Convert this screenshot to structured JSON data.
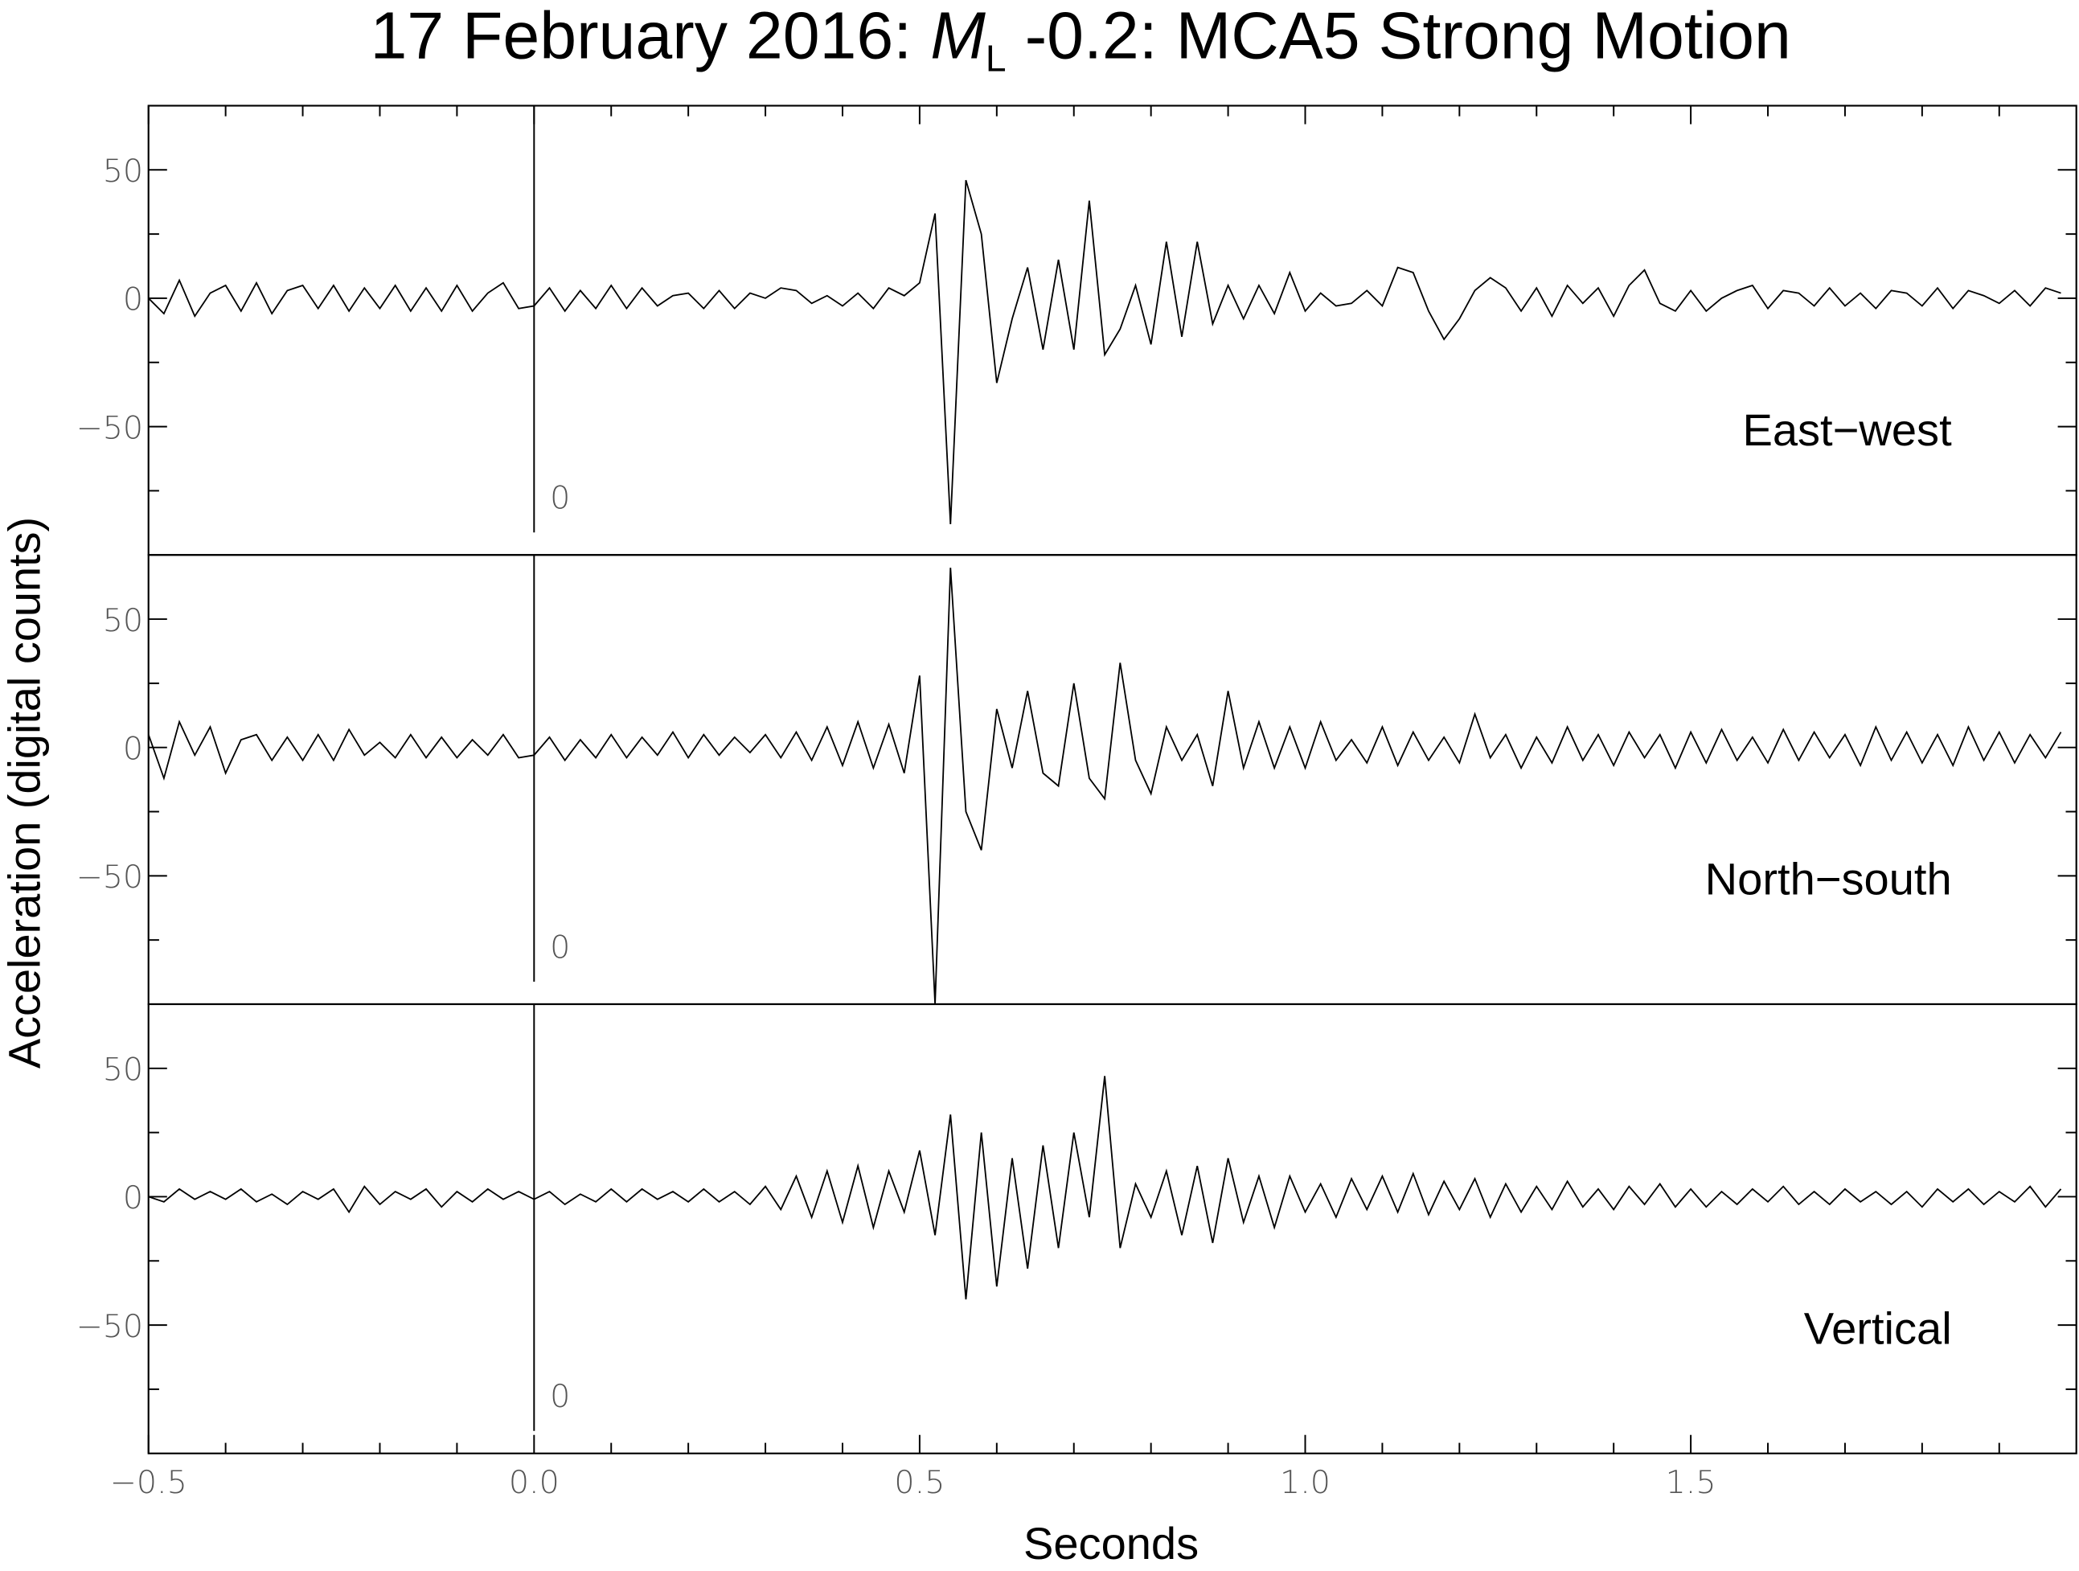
{
  "chart_data": {
    "type": "line",
    "layout": "stacked",
    "title": {
      "date": "17 February 2016:",
      "symbol": "M",
      "subscript": "L",
      "rest": "-0.2: MCA5 Strong Motion"
    },
    "xlabel": "Seconds",
    "ylabel": "Acceleration (digital counts)",
    "xlim": [
      -0.5,
      2.0
    ],
    "xticks": [
      {
        "value": -0.5,
        "label": "−0.5"
      },
      {
        "value": 0,
        "label": "0.0"
      },
      0.5,
      {
        "value": 1,
        "label": "1.0"
      },
      1.5
    ],
    "minor_xticks": [
      -0.4,
      -0.3,
      -0.2,
      -0.1,
      0.1,
      0.2,
      0.3,
      0.4,
      0.6,
      0.7,
      0.8,
      0.9,
      1.1,
      1.2,
      1.3,
      1.4,
      1.6,
      1.7,
      1.8,
      1.9
    ],
    "ylim": [
      -100,
      75
    ],
    "yticks": [
      50,
      0,
      {
        "value": -50,
        "label": "−50"
      }
    ],
    "minor_yticks": [
      25,
      -25,
      -75
    ],
    "grid": false,
    "marker_x": 0,
    "x": [
      -0.5,
      -0.48,
      -0.46,
      -0.44,
      -0.42,
      -0.4,
      -0.38,
      -0.36,
      -0.34,
      -0.32,
      -0.3,
      -0.28,
      -0.26,
      -0.24,
      -0.22,
      -0.2,
      -0.18,
      -0.16,
      -0.14,
      -0.12,
      -0.1,
      -0.08,
      -0.06,
      -0.04,
      -0.02,
      0,
      0.02,
      0.04,
      0.06,
      0.08,
      0.1,
      0.12,
      0.14,
      0.16,
      0.18,
      0.2,
      0.22,
      0.24,
      0.26,
      0.28,
      0.3,
      0.32,
      0.34,
      0.36,
      0.38,
      0.4,
      0.42,
      0.44,
      0.46,
      0.48,
      0.5,
      0.52,
      0.54,
      0.56,
      0.58,
      0.6,
      0.62,
      0.64,
      0.66,
      0.68,
      0.7,
      0.72,
      0.74,
      0.76,
      0.78,
      0.8,
      0.82,
      0.84,
      0.86,
      0.88,
      0.9,
      0.92,
      0.94,
      0.96,
      0.98,
      1,
      1.02,
      1.04,
      1.06,
      1.08,
      1.1,
      1.12,
      1.14,
      1.16,
      1.18,
      1.2,
      1.22,
      1.24,
      1.26,
      1.28,
      1.3,
      1.32,
      1.34,
      1.36,
      1.38,
      1.4,
      1.42,
      1.44,
      1.46,
      1.48,
      1.5,
      1.52,
      1.54,
      1.56,
      1.58,
      1.6,
      1.62,
      1.64,
      1.66,
      1.68,
      1.7,
      1.72,
      1.74,
      1.76,
      1.78,
      1.8,
      1.82,
      1.84,
      1.86,
      1.88,
      1.9,
      1.92,
      1.94,
      1.96,
      1.98
    ],
    "series": [
      {
        "name": "East−west",
        "color": "#000000",
        "values": [
          0,
          -6,
          7,
          -7,
          2,
          5,
          -5,
          6,
          -6,
          3,
          5,
          -4,
          5,
          -5,
          4,
          -4,
          5,
          -5,
          4,
          -5,
          5,
          -5,
          2,
          6,
          -4,
          -3,
          4,
          -5,
          3,
          -4,
          5,
          -4,
          4,
          -3,
          1,
          2,
          -4,
          3,
          -4,
          2,
          0,
          4,
          3,
          -2,
          1,
          -3,
          2,
          -4,
          4,
          1,
          6,
          33,
          -88,
          46,
          25,
          -33,
          -8,
          12,
          -20,
          15,
          -20,
          38,
          -22,
          -12,
          5,
          -18,
          22,
          -15,
          22,
          -10,
          5,
          -8,
          5,
          -6,
          10,
          -5,
          2,
          -3,
          -2,
          3,
          -3,
          12,
          10,
          -5,
          -16,
          -8,
          3,
          8,
          4,
          -5,
          4,
          -7,
          5,
          -2,
          4,
          -7,
          5,
          11,
          -2,
          -5,
          3,
          -5,
          0,
          3,
          5,
          -4,
          3,
          2,
          -3,
          4,
          -3,
          2,
          -4,
          3,
          2,
          -3,
          4,
          -4,
          3,
          1,
          -2,
          3,
          -3,
          4,
          2
        ]
      },
      {
        "name": "North−south",
        "color": "#000000",
        "values": [
          5,
          -12,
          10,
          -3,
          8,
          -10,
          3,
          5,
          -5,
          4,
          -5,
          5,
          -5,
          7,
          -3,
          2,
          -4,
          5,
          -4,
          4,
          -4,
          3,
          -3,
          5,
          -4,
          -3,
          4,
          -5,
          3,
          -4,
          5,
          -4,
          4,
          -3,
          6,
          -4,
          5,
          -3,
          4,
          -2,
          5,
          -4,
          6,
          -5,
          8,
          -7,
          10,
          -8,
          9,
          -10,
          28,
          -100,
          70,
          -25,
          -40,
          15,
          -8,
          22,
          -10,
          -15,
          25,
          -12,
          -20,
          33,
          -5,
          -18,
          8,
          -5,
          5,
          -15,
          22,
          -8,
          10,
          -8,
          8,
          -8,
          10,
          -5,
          3,
          -6,
          8,
          -7,
          6,
          -5,
          4,
          -6,
          13,
          -4,
          5,
          -8,
          4,
          -6,
          8,
          -5,
          5,
          -7,
          6,
          -4,
          5,
          -8,
          6,
          -6,
          7,
          -5,
          4,
          -6,
          7,
          -5,
          6,
          -4,
          5,
          -7,
          8,
          -5,
          6,
          -6,
          5,
          -7,
          8,
          -5,
          6,
          -6,
          5,
          -4,
          6
        ]
      },
      {
        "name": "Vertical",
        "color": "#000000",
        "values": [
          0,
          -2,
          3,
          -1,
          2,
          -1,
          3,
          -2,
          1,
          -3,
          2,
          -1,
          3,
          -6,
          4,
          -3,
          2,
          -1,
          3,
          -4,
          2,
          -2,
          3,
          -1,
          2,
          -1,
          2,
          -3,
          1,
          -2,
          3,
          -2,
          3,
          -1,
          2,
          -2,
          3,
          -2,
          2,
          -3,
          4,
          -5,
          8,
          -8,
          10,
          -10,
          12,
          -12,
          10,
          -6,
          18,
          -15,
          32,
          -40,
          25,
          -35,
          15,
          -28,
          20,
          -20,
          25,
          -8,
          47,
          -20,
          5,
          -8,
          10,
          -15,
          12,
          -18,
          15,
          -10,
          8,
          -12,
          8,
          -6,
          5,
          -8,
          7,
          -5,
          8,
          -6,
          9,
          -7,
          6,
          -5,
          7,
          -8,
          5,
          -6,
          4,
          -5,
          6,
          -4,
          3,
          -5,
          4,
          -3,
          5,
          -4,
          3,
          -4,
          2,
          -3,
          3,
          -2,
          4,
          -3,
          2,
          -3,
          3,
          -2,
          2,
          -3,
          2,
          -4,
          3,
          -2,
          3,
          -3,
          2,
          -2,
          4,
          -4,
          3
        ]
      }
    ]
  }
}
